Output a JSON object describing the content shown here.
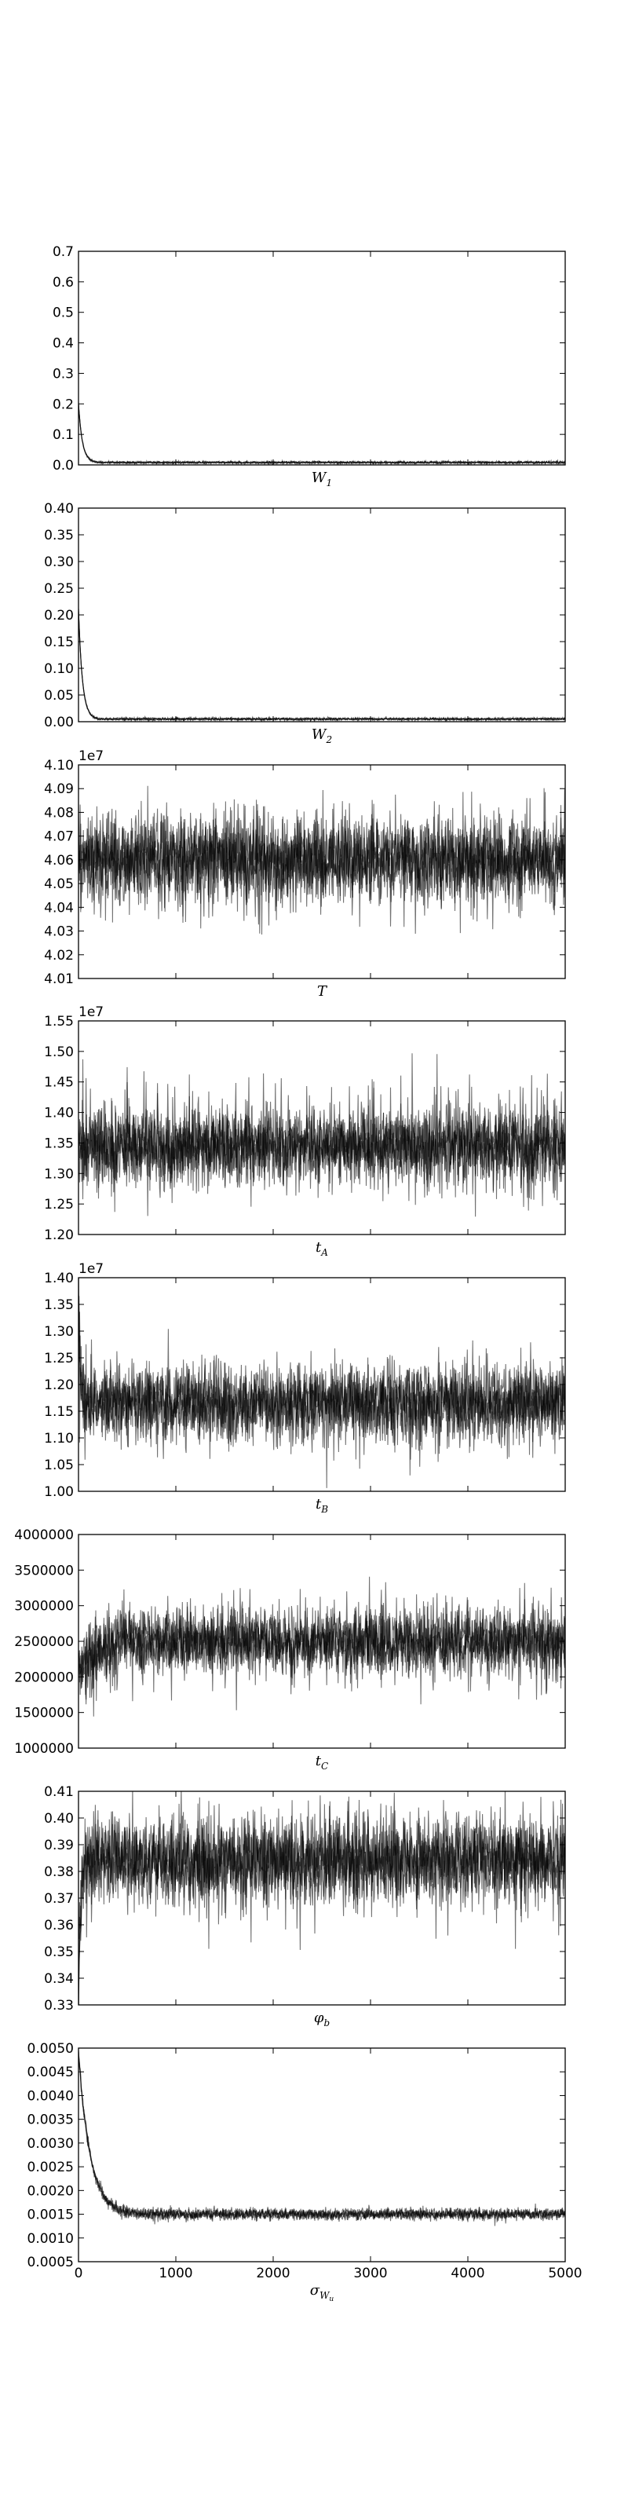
{
  "chart_data": [
    {
      "type": "line",
      "label": "W_1",
      "xlabel_main": "W",
      "xlabel_sub": "1",
      "offset": "",
      "xlim": [
        0,
        5000
      ],
      "ylim": [
        0.0,
        0.7
      ],
      "yticks": [
        "0.0",
        "0.1",
        "0.2",
        "0.3",
        "0.4",
        "0.5",
        "0.6",
        "0.7"
      ],
      "ytick_values": [
        0,
        0.1,
        0.2,
        0.3,
        0.4,
        0.5,
        0.6,
        0.7
      ],
      "xticks": [],
      "xtick_values": [
        0,
        1000,
        2000,
        3000,
        4000,
        5000
      ],
      "trace": {
        "start": 0.2,
        "burn_in": 40,
        "center": 0.008,
        "spread": 0.002,
        "excursion_prob": 0.0,
        "excursion_up": 0,
        "excursion_down": 0
      }
    },
    {
      "type": "line",
      "label": "W_2",
      "xlabel_main": "W",
      "xlabel_sub": "2",
      "offset": "",
      "xlim": [
        0,
        5000
      ],
      "ylim": [
        0.0,
        0.4
      ],
      "yticks": [
        "0.00",
        "0.05",
        "0.10",
        "0.15",
        "0.20",
        "0.25",
        "0.30",
        "0.35",
        "0.40"
      ],
      "ytick_values": [
        0,
        0.05,
        0.1,
        0.15,
        0.2,
        0.25,
        0.3,
        0.35,
        0.4
      ],
      "xticks": [],
      "xtick_values": [
        0,
        1000,
        2000,
        3000,
        4000,
        5000
      ],
      "trace": {
        "start": 0.21,
        "burn_in": 40,
        "center": 0.005,
        "spread": 0.0012,
        "excursion_prob": 0.0,
        "excursion_up": 0,
        "excursion_down": 0
      }
    },
    {
      "type": "line",
      "label": "T",
      "xlabel_main": "T",
      "xlabel_sub": "",
      "offset": "1e7",
      "xlim": [
        0,
        5000
      ],
      "ylim": [
        4.01,
        4.1
      ],
      "yticks": [
        "4.01",
        "4.02",
        "4.03",
        "4.04",
        "4.05",
        "4.06",
        "4.07",
        "4.08",
        "4.09",
        "4.10"
      ],
      "ytick_values": [
        4.01,
        4.02,
        4.03,
        4.04,
        4.05,
        4.06,
        4.07,
        4.08,
        4.09,
        4.1
      ],
      "xticks": [],
      "xtick_values": [
        0,
        1000,
        2000,
        3000,
        4000,
        5000
      ],
      "trace": {
        "start": 4.06,
        "burn_in": 0,
        "center": 4.06,
        "spread": 0.009,
        "excursion_prob": 0.02,
        "excursion_up": 0.022,
        "excursion_down": 0.025
      }
    },
    {
      "type": "line",
      "label": "t_A",
      "xlabel_main": "t",
      "xlabel_sub": "A",
      "offset": "1e7",
      "xlim": [
        0,
        5000
      ],
      "ylim": [
        1.2,
        1.55
      ],
      "yticks": [
        "1.20",
        "1.25",
        "1.30",
        "1.35",
        "1.40",
        "1.45",
        "1.50",
        "1.55"
      ],
      "ytick_values": [
        1.2,
        1.25,
        1.3,
        1.35,
        1.4,
        1.45,
        1.5,
        1.55
      ],
      "xticks": [],
      "xtick_values": [
        0,
        1000,
        2000,
        3000,
        4000,
        5000
      ],
      "trace": {
        "start": 1.35,
        "burn_in": 0,
        "center": 1.345,
        "spread": 0.03,
        "excursion_prob": 0.05,
        "excursion_up": 0.1,
        "excursion_down": 0.06
      }
    },
    {
      "type": "line",
      "label": "t_B",
      "xlabel_main": "t",
      "xlabel_sub": "B",
      "offset": "1e7",
      "xlim": [
        0,
        5000
      ],
      "ylim": [
        1.0,
        1.4
      ],
      "yticks": [
        "1.00",
        "1.05",
        "1.10",
        "1.15",
        "1.20",
        "1.25",
        "1.30",
        "1.35",
        "1.40"
      ],
      "ytick_values": [
        1.0,
        1.05,
        1.1,
        1.15,
        1.2,
        1.25,
        1.3,
        1.35,
        1.4
      ],
      "xticks": [],
      "xtick_values": [
        0,
        1000,
        2000,
        3000,
        4000,
        5000
      ],
      "trace": {
        "start": 1.37,
        "burn_in": 15,
        "center": 1.165,
        "spread": 0.035,
        "excursion_prob": 0.02,
        "excursion_up": 0.08,
        "excursion_down": 0.08
      }
    },
    {
      "type": "line",
      "label": "t_C",
      "xlabel_main": "t",
      "xlabel_sub": "C",
      "offset": "",
      "xlim": [
        0,
        5000
      ],
      "ylim": [
        1000000,
        4000000
      ],
      "yticks": [
        "1000000",
        "1500000",
        "2000000",
        "2500000",
        "3000000",
        "3500000",
        "4000000"
      ],
      "ytick_values": [
        1000000,
        1500000,
        2000000,
        2500000,
        3000000,
        3500000,
        4000000
      ],
      "xticks": [],
      "xtick_values": [
        0,
        1000,
        2000,
        3000,
        4000,
        5000
      ],
      "trace": {
        "start": 2000000,
        "burn_in": 150,
        "center": 2500000,
        "spread": 230000,
        "excursion_prob": 0.02,
        "excursion_up": 650000,
        "excursion_down": 700000
      }
    },
    {
      "type": "line",
      "label": "phi_b",
      "xlabel_main": "φ",
      "xlabel_sub": "b",
      "offset": "",
      "xlim": [
        0,
        5000
      ],
      "ylim": [
        0.33,
        0.41
      ],
      "yticks": [
        "0.33",
        "0.34",
        "0.35",
        "0.36",
        "0.37",
        "0.38",
        "0.39",
        "0.40",
        "0.41"
      ],
      "ytick_values": [
        0.33,
        0.34,
        0.35,
        0.36,
        0.37,
        0.38,
        0.39,
        0.4,
        0.41
      ],
      "xticks": [],
      "xtick_values": [
        0,
        1000,
        2000,
        3000,
        4000,
        5000
      ],
      "trace": {
        "start": 0.335,
        "burn_in": 20,
        "center": 0.384,
        "spread": 0.008,
        "excursion_prob": 0.02,
        "excursion_up": 0.018,
        "excursion_down": 0.022
      }
    },
    {
      "type": "line",
      "label": "sigma_W_u",
      "xlabel_main": "σ",
      "xlabel_sub": "W",
      "xlabel_subsub": "u",
      "offset": "",
      "xlim": [
        0,
        5000
      ],
      "ylim": [
        0.0005,
        0.005
      ],
      "yticks": [
        "0.0005",
        "0.0010",
        "0.0015",
        "0.0020",
        "0.0025",
        "0.0030",
        "0.0035",
        "0.0040",
        "0.0045",
        "0.0050"
      ],
      "ytick_values": [
        0.0005,
        0.001,
        0.0015,
        0.002,
        0.0025,
        0.003,
        0.0035,
        0.004,
        0.0045,
        0.005
      ],
      "xticks": [
        "0",
        "1000",
        "2000",
        "3000",
        "4000",
        "5000"
      ],
      "xtick_values": [
        0,
        1000,
        2000,
        3000,
        4000,
        5000
      ],
      "trace": {
        "start": 0.0049,
        "burn_in": 120,
        "center": 0.0015,
        "spread": 6e-05,
        "excursion_prob": 0.0,
        "excursion_up": 0,
        "excursion_down": 0
      }
    }
  ]
}
